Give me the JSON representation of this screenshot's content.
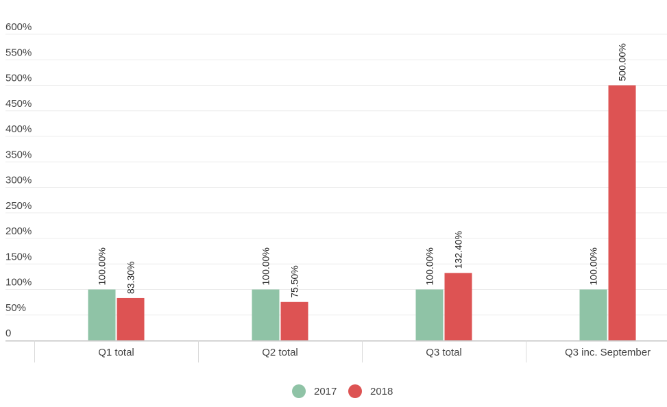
{
  "chart_data": {
    "type": "bar",
    "categories": [
      "Q1 total",
      "Q2 total",
      "Q3 total",
      "Q3 inc. September"
    ],
    "series": [
      {
        "name": "2017",
        "color": "#8fc3a6",
        "values": [
          100,
          100,
          100,
          100
        ],
        "labels": [
          "100.00%",
          "100.00%",
          "100.00%",
          "100.00%"
        ]
      },
      {
        "name": "2018",
        "color": "#dd5353",
        "values": [
          83.3,
          75.5,
          132.4,
          500
        ],
        "labels": [
          "83.30%",
          "75.50%",
          "132.40%",
          "500.00%"
        ]
      }
    ],
    "y_ticks": [
      0,
      50,
      100,
      150,
      200,
      250,
      300,
      350,
      400,
      450,
      500,
      550,
      600
    ],
    "y_tick_labels": [
      "0",
      "50%",
      "100%",
      "150%",
      "200%",
      "250%",
      "300%",
      "350%",
      "400%",
      "450%",
      "500%",
      "550%",
      "600%"
    ],
    "ylim": [
      0,
      600
    ],
    "grid": true,
    "legend_position": "bottom-center",
    "title": "",
    "xlabel": "",
    "ylabel": ""
  }
}
